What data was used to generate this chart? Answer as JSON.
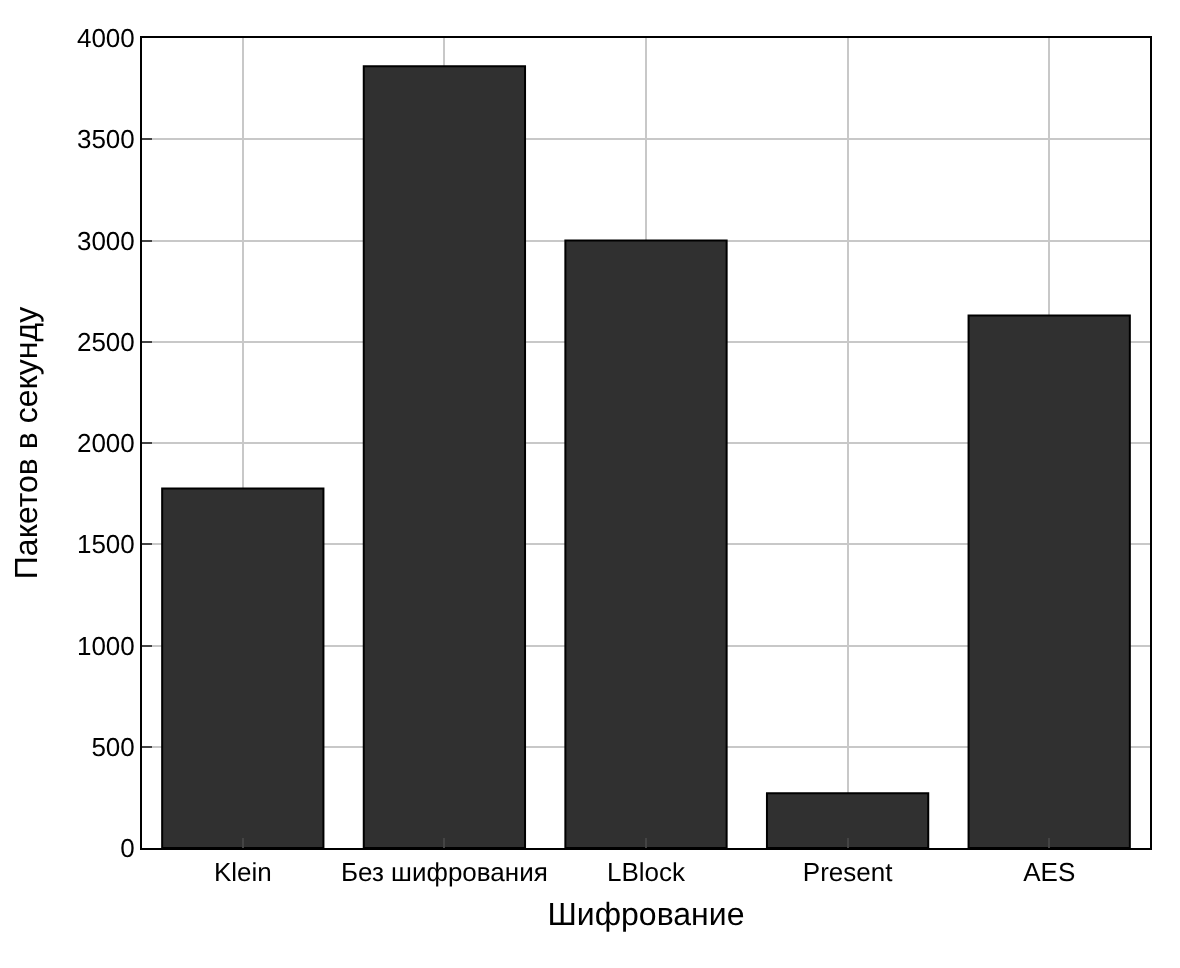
{
  "chart_data": {
    "type": "bar",
    "xlabel": "Шифрование",
    "ylabel": "Пакетов в секунду",
    "categories": [
      "Klein",
      "Без шифрования",
      "LBlock",
      "Present",
      "AES"
    ],
    "series": [
      {
        "color": "#303030",
        "values": [
          1775,
          3860,
          3000,
          270,
          2630
        ]
      }
    ],
    "ylim": [
      0,
      4000
    ],
    "yticks": [
      0,
      500,
      1000,
      1500,
      2000,
      2500,
      3000,
      3500,
      4000
    ],
    "grid": true
  }
}
